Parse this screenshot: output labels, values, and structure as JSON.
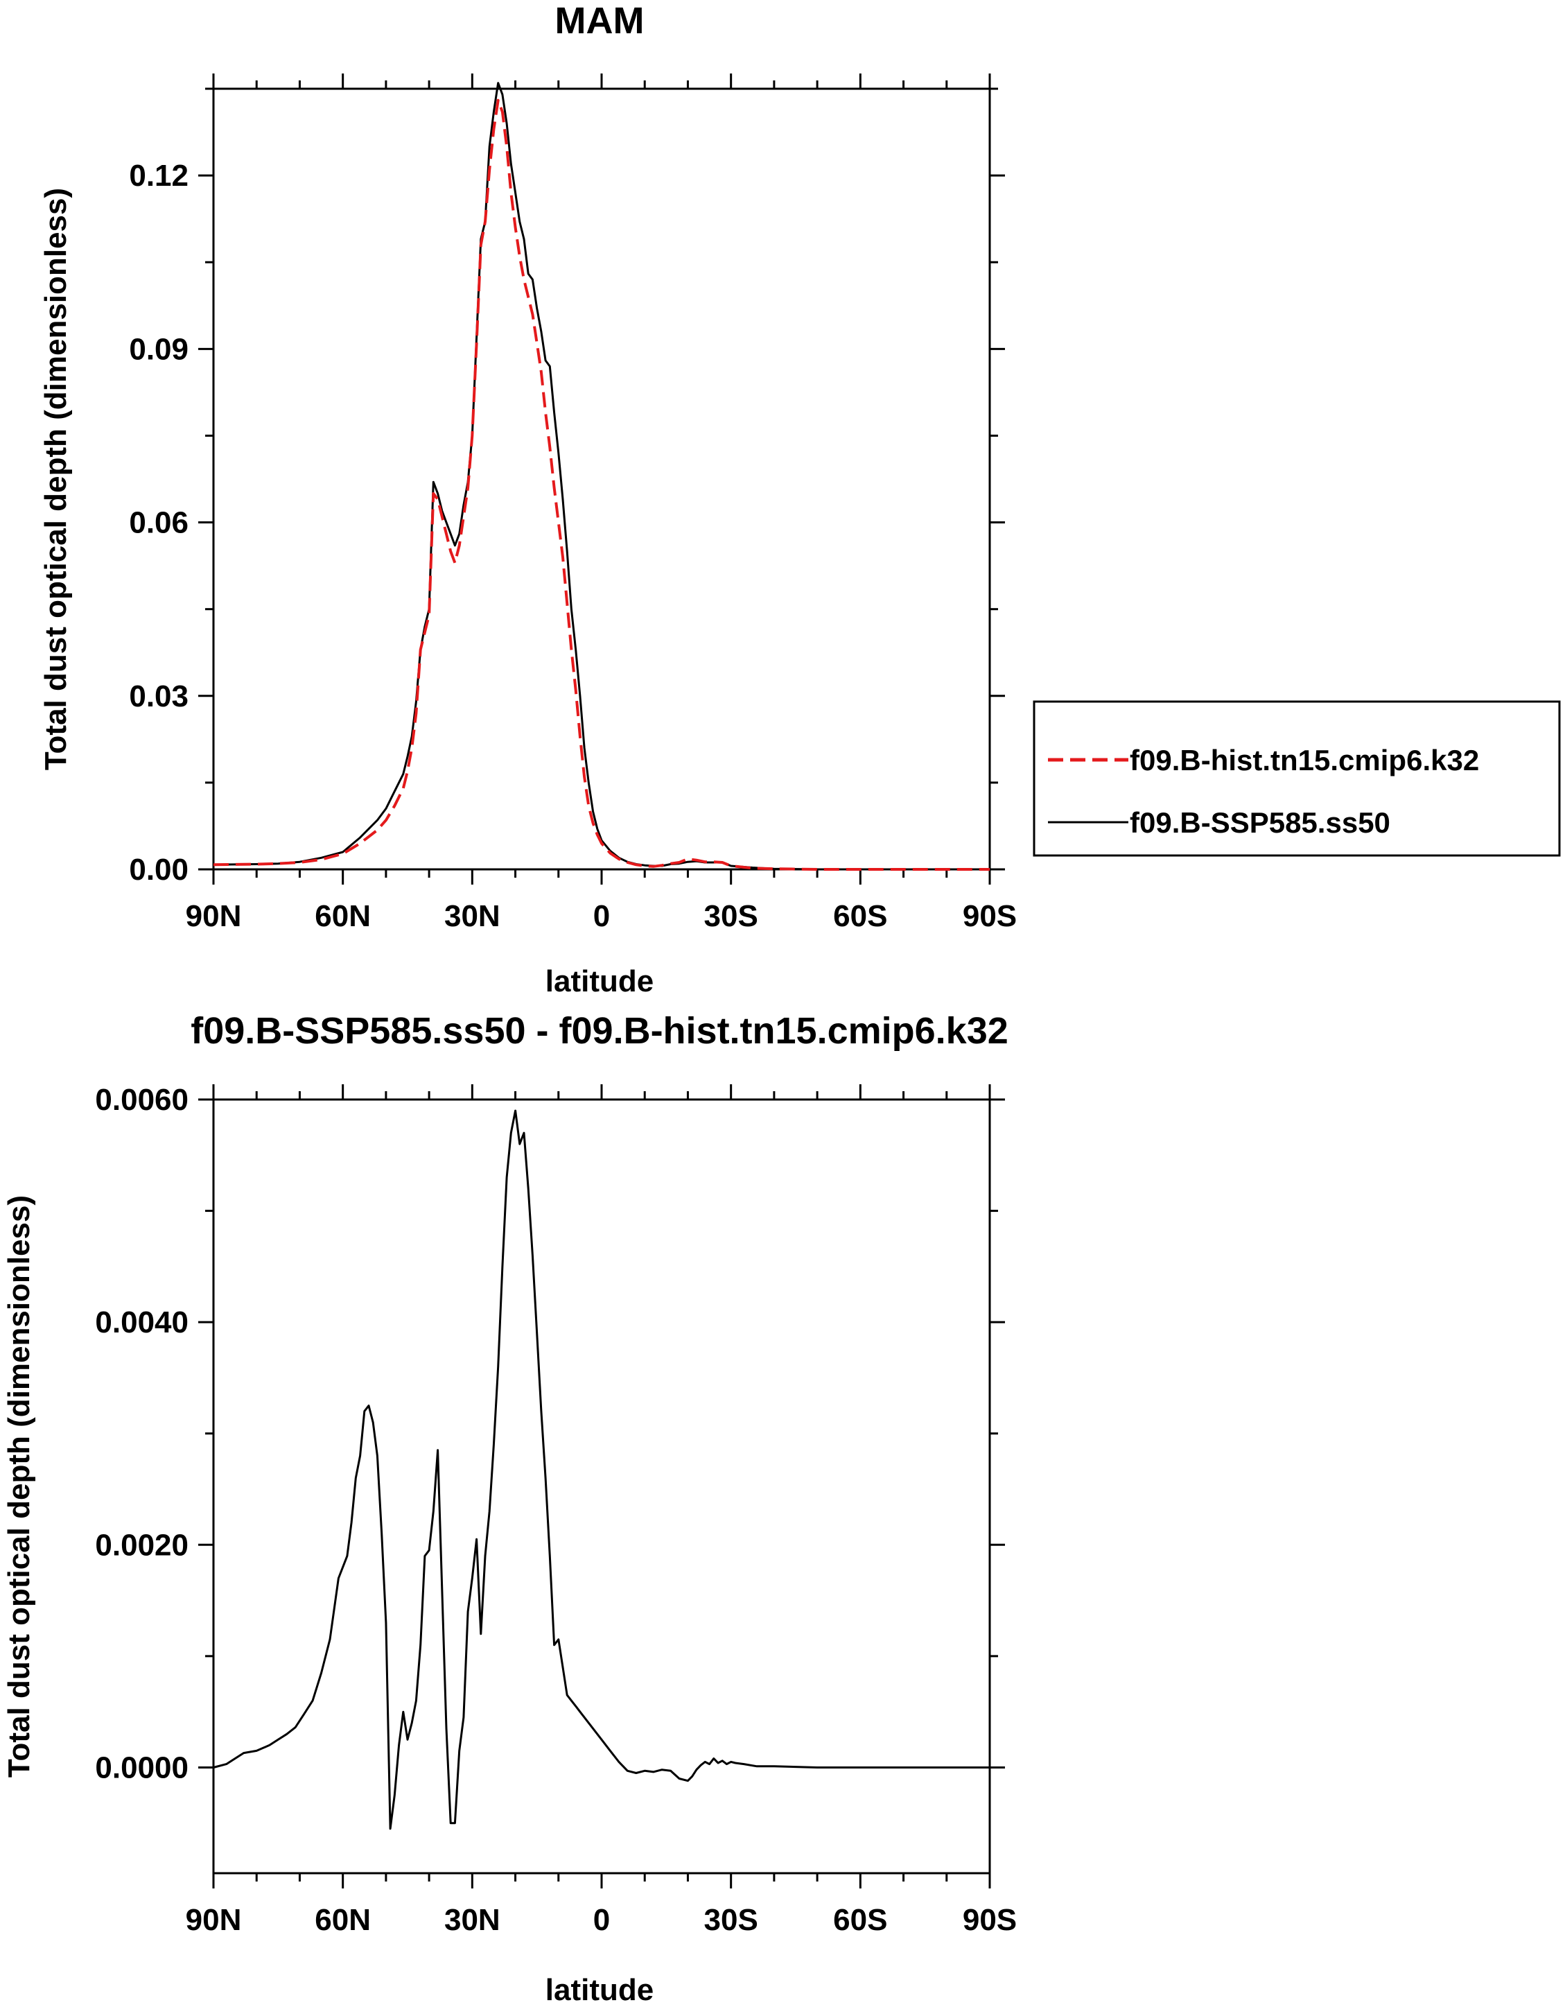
{
  "chart_data": [
    {
      "type": "line",
      "title": "MAM",
      "xlabel": "latitude",
      "ylabel": "Total dust optical depth (dimensionless)",
      "xlim": [
        90,
        -90
      ],
      "ylim": [
        0,
        0.135
      ],
      "xticks": [
        {
          "value": 90,
          "label": "90N"
        },
        {
          "value": 60,
          "label": "60N"
        },
        {
          "value": 30,
          "label": "30N"
        },
        {
          "value": 0,
          "label": "0"
        },
        {
          "value": -30,
          "label": "30S"
        },
        {
          "value": -60,
          "label": "60S"
        },
        {
          "value": -90,
          "label": "90S"
        }
      ],
      "yticks": [
        {
          "value": 0,
          "label": "0.00"
        },
        {
          "value": 0.03,
          "label": "0.03"
        },
        {
          "value": 0.06,
          "label": "0.06"
        },
        {
          "value": 0.09,
          "label": "0.09"
        },
        {
          "value": 0.12,
          "label": "0.12"
        }
      ],
      "legend_position": "right",
      "series": [
        {
          "name": "f09.B-hist.tn15.cmip6.k32",
          "color": "#e41a1c",
          "style": "dashed",
          "x": [
            90,
            80,
            75,
            70,
            65,
            60,
            56,
            52,
            50,
            48,
            46,
            45,
            44,
            43,
            42,
            41,
            40,
            39,
            38,
            37,
            36,
            35,
            34,
            33,
            32,
            31,
            30,
            29,
            28,
            27,
            26,
            25,
            24,
            23,
            22,
            21,
            20,
            19,
            18,
            17,
            16,
            15,
            14,
            13,
            12,
            11,
            10,
            9,
            8,
            7,
            6,
            5,
            4,
            3,
            2,
            1,
            0,
            -2,
            -4,
            -6,
            -8,
            -10,
            -12,
            -14,
            -16,
            -18,
            -20,
            -22,
            -24,
            -26,
            -28,
            -30,
            -35,
            -40,
            -50,
            -60,
            -90
          ],
          "y": [
            0.0008,
            0.0009,
            0.001,
            0.0012,
            0.0017,
            0.0027,
            0.0045,
            0.0068,
            0.0085,
            0.011,
            0.014,
            0.017,
            0.021,
            0.027,
            0.038,
            0.041,
            0.044,
            0.065,
            0.064,
            0.061,
            0.058,
            0.055,
            0.053,
            0.056,
            0.061,
            0.066,
            0.075,
            0.091,
            0.108,
            0.112,
            0.121,
            0.128,
            0.133,
            0.131,
            0.125,
            0.117,
            0.111,
            0.106,
            0.102,
            0.099,
            0.096,
            0.091,
            0.086,
            0.079,
            0.073,
            0.066,
            0.06,
            0.054,
            0.046,
            0.038,
            0.031,
            0.023,
            0.016,
            0.011,
            0.008,
            0.006,
            0.0045,
            0.0028,
            0.0018,
            0.0012,
            0.0008,
            0.0006,
            0.0005,
            0.0007,
            0.001,
            0.0012,
            0.0018,
            0.0016,
            0.0013,
            0.0013,
            0.0012,
            0.0006,
            0.0002,
            0.0001,
            0.0,
            0.0,
            0.0
          ]
        },
        {
          "name": "f09.B-SSP585.ss50",
          "color": "#000000",
          "style": "solid",
          "x": [
            90,
            80,
            75,
            70,
            65,
            60,
            56,
            52,
            50,
            48,
            46,
            45,
            44,
            43,
            42,
            41,
            40,
            39,
            38,
            37,
            36,
            35,
            34,
            33,
            32,
            31,
            30,
            29,
            28,
            27,
            26,
            25,
            24,
            23,
            22,
            21,
            20,
            19,
            18,
            17,
            16,
            15,
            14,
            13,
            12,
            11,
            10,
            9,
            8,
            7,
            6,
            5,
            4,
            3,
            2,
            1,
            0,
            -2,
            -4,
            -6,
            -8,
            -10,
            -12,
            -14,
            -16,
            -18,
            -20,
            -22,
            -24,
            -26,
            -28,
            -30,
            -35,
            -40,
            -50,
            -60,
            -90
          ],
          "y": [
            0.0008,
            0.0009,
            0.001,
            0.0013,
            0.002,
            0.003,
            0.0055,
            0.0085,
            0.0105,
            0.0135,
            0.0165,
            0.0195,
            0.023,
            0.029,
            0.038,
            0.042,
            0.045,
            0.067,
            0.065,
            0.062,
            0.06,
            0.058,
            0.056,
            0.058,
            0.063,
            0.067,
            0.075,
            0.092,
            0.109,
            0.112,
            0.125,
            0.131,
            0.136,
            0.134,
            0.129,
            0.122,
            0.117,
            0.112,
            0.109,
            0.103,
            0.102,
            0.097,
            0.093,
            0.088,
            0.087,
            0.079,
            0.072,
            0.064,
            0.055,
            0.045,
            0.038,
            0.03,
            0.021,
            0.015,
            0.01,
            0.007,
            0.005,
            0.0032,
            0.002,
            0.0013,
            0.0009,
            0.0007,
            0.0006,
            0.0006,
            0.0009,
            0.001,
            0.0013,
            0.0014,
            0.0012,
            0.0012,
            0.0012,
            0.0006,
            0.0003,
            0.0001,
            0.0,
            0.0,
            0.0
          ]
        }
      ]
    },
    {
      "type": "line",
      "title": "f09.B-SSP585.ss50 - f09.B-hist.tn15.cmip6.k32",
      "xlabel": "latitude",
      "ylabel": "Total dust optical depth (dimensionless)",
      "xlim": [
        90,
        -90
      ],
      "ylim": [
        -0.00095,
        0.006
      ],
      "xticks": [
        {
          "value": 90,
          "label": "90N"
        },
        {
          "value": 60,
          "label": "60N"
        },
        {
          "value": 30,
          "label": "30N"
        },
        {
          "value": 0,
          "label": "0"
        },
        {
          "value": -30,
          "label": "30S"
        },
        {
          "value": -60,
          "label": "60S"
        },
        {
          "value": -90,
          "label": "90S"
        }
      ],
      "yticks": [
        {
          "value": 0,
          "label": "0.0000"
        },
        {
          "value": 0.002,
          "label": "0.0020"
        },
        {
          "value": 0.004,
          "label": "0.0040"
        },
        {
          "value": 0.006,
          "label": "0.0060"
        }
      ],
      "series": [
        {
          "name": "f09.B-SSP585.ss50 - f09.B-hist.tn15.cmip6.k32",
          "color": "#000000",
          "style": "solid",
          "x": [
            90,
            87,
            85,
            83,
            80,
            77,
            75,
            73,
            71,
            69,
            67,
            65,
            63,
            61,
            59,
            58,
            57,
            56,
            55,
            54,
            53,
            52,
            51,
            50,
            49,
            48,
            47,
            46,
            45,
            44,
            43,
            42,
            41,
            40,
            39,
            38,
            37,
            36,
            35,
            34,
            33,
            32,
            31,
            30,
            29,
            28,
            27,
            26,
            25,
            24,
            23,
            22,
            21,
            20,
            19,
            18,
            17,
            16,
            15,
            14,
            13,
            12,
            11,
            10,
            9,
            8,
            7,
            6,
            5,
            4,
            3,
            2,
            1,
            0,
            -2,
            -4,
            -6,
            -8,
            -10,
            -12,
            -14,
            -16,
            -18,
            -20,
            -21,
            -22,
            -23,
            -24,
            -25,
            -26,
            -27,
            -28,
            -29,
            -30,
            -31,
            -33,
            -36,
            -40,
            -50,
            -60,
            -90
          ],
          "y": [
            0.0,
            3e-05,
            8e-05,
            0.00013,
            0.00015,
            0.0002,
            0.00025,
            0.0003,
            0.00036,
            0.00048,
            0.0006,
            0.00085,
            0.00115,
            0.0017,
            0.0019,
            0.0022,
            0.0026,
            0.0028,
            0.0032,
            0.00325,
            0.0031,
            0.0028,
            0.0021,
            0.0013,
            -0.00055,
            -0.00025,
            0.0002,
            0.0005,
            0.00025,
            0.0004,
            0.0006,
            0.0011,
            0.0019,
            0.00195,
            0.0023,
            0.00285,
            0.0016,
            0.00035,
            -0.0005,
            -0.0005,
            0.00015,
            0.00045,
            0.0014,
            0.0017,
            0.00205,
            0.0012,
            0.0019,
            0.0023,
            0.0029,
            0.0036,
            0.0045,
            0.0053,
            0.0057,
            0.0059,
            0.0056,
            0.0057,
            0.0052,
            0.0046,
            0.0039,
            0.0032,
            0.0026,
            0.0019,
            0.0011,
            0.00115,
            0.0009,
            0.00065,
            0.0006,
            0.00055,
            0.0005,
            0.00045,
            0.0004,
            0.00035,
            0.0003,
            0.00025,
            0.00015,
            5e-05,
            -3e-05,
            -5e-05,
            -3e-05,
            -4e-05,
            -2e-05,
            -3e-05,
            -0.0001,
            -0.00012,
            -8e-05,
            -2e-05,
            2e-05,
            5e-05,
            3e-05,
            8e-05,
            4e-05,
            6e-05,
            3e-05,
            5e-05,
            4e-05,
            3e-05,
            1e-05,
            1e-05,
            0.0,
            0.0,
            0.0
          ]
        }
      ]
    }
  ]
}
